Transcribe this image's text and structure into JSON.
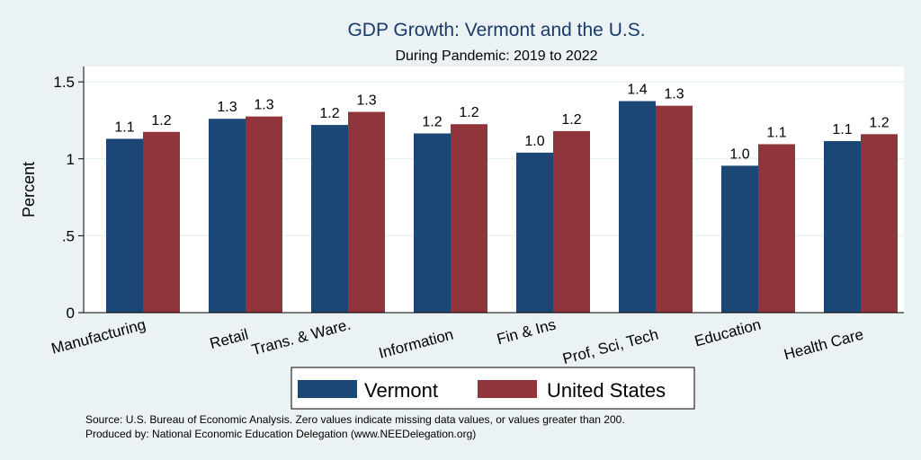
{
  "chart_data": {
    "type": "bar",
    "title": "GDP Growth: Vermont and the U.S.",
    "subtitle": "During Pandemic: 2019 to 2022",
    "ylabel": "Percent",
    "xlabel": "",
    "ylim": [
      0,
      1.6
    ],
    "yticks": [
      {
        "value": 0,
        "label": "0"
      },
      {
        "value": 0.5,
        "label": ".5"
      },
      {
        "value": 1,
        "label": "1"
      },
      {
        "value": 1.5,
        "label": "1.5"
      }
    ],
    "grid": true,
    "legend_position": "bottom",
    "categories": [
      "Manufacturing",
      "Retail",
      "Trans. & Ware.",
      "Information",
      "Fin & Ins",
      "Prof, Sci, Tech",
      "Education",
      "Health Care"
    ],
    "series": [
      {
        "name": "Vermont",
        "color": "#1a4775",
        "values": [
          1.13,
          1.26,
          1.22,
          1.165,
          1.04,
          1.375,
          0.955,
          1.115
        ],
        "labels": [
          "1.1",
          "1.3",
          "1.2",
          "1.2",
          "1.0",
          "1.4",
          "1.0",
          "1.1"
        ]
      },
      {
        "name": "United States",
        "color": "#90353b",
        "values": [
          1.175,
          1.275,
          1.305,
          1.225,
          1.18,
          1.345,
          1.095,
          1.16
        ],
        "labels": [
          "1.2",
          "1.3",
          "1.3",
          "1.2",
          "1.2",
          "1.3",
          "1.1",
          "1.2"
        ]
      }
    ],
    "notes": [
      "Source: U.S. Bureau of Economic Analysis. Zero values indicate missing data values, or values greater than 200.",
      "Produced by: National Economic Education Delegation (www.NEEDelegation.org)"
    ]
  }
}
